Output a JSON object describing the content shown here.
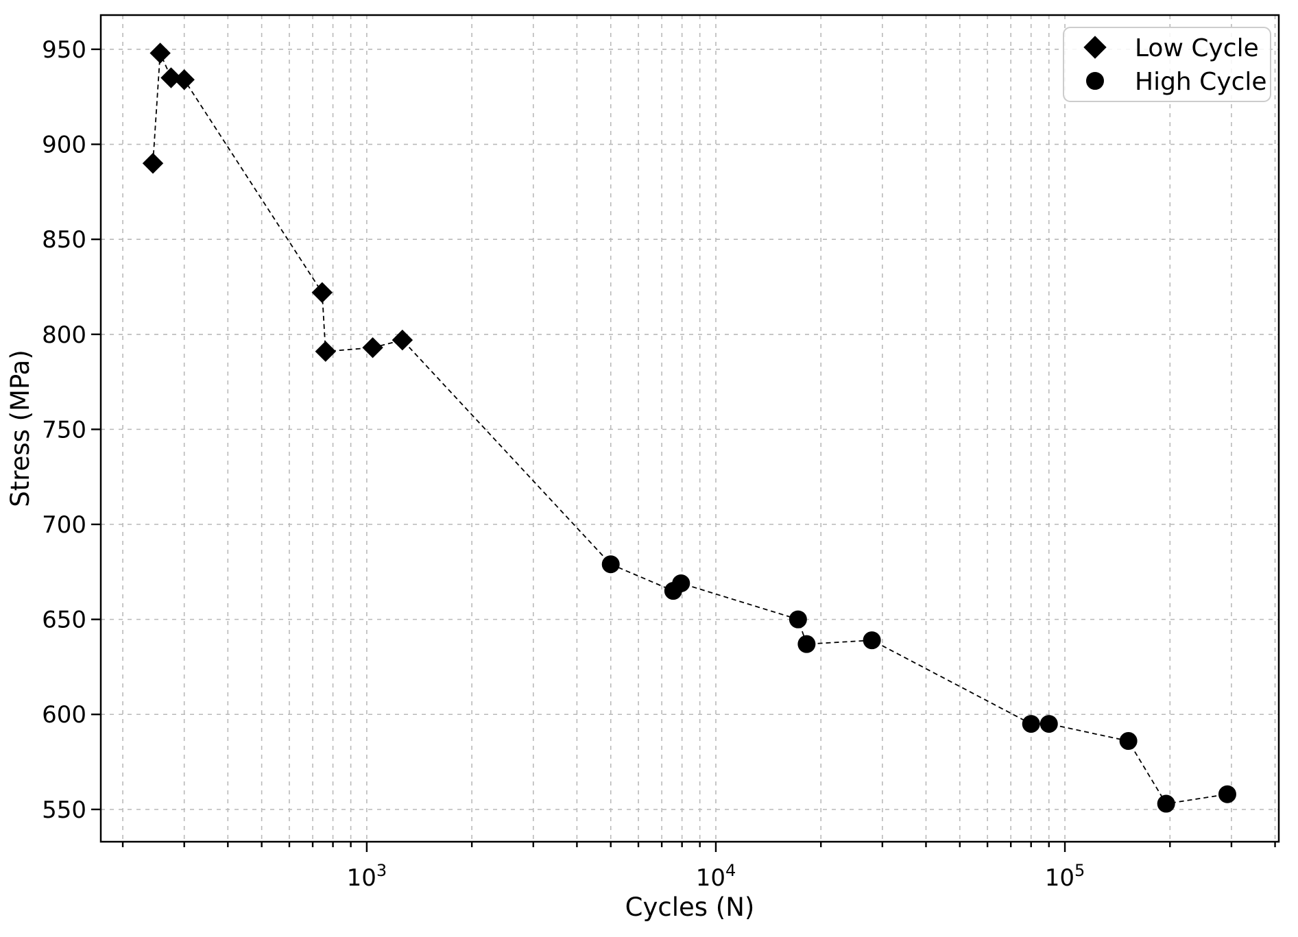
{
  "chart_data": {
    "type": "scatter",
    "title": "",
    "xlabel": "Cycles (N)",
    "ylabel": "Stress (MPa)",
    "x_scale": "log",
    "xlim": [
      173,
      410000
    ],
    "ylim": [
      533,
      968
    ],
    "y_ticks": [
      550,
      600,
      650,
      700,
      750,
      800,
      850,
      900,
      950
    ],
    "x_major_ticks": [
      {
        "value": 1000,
        "base": "10",
        "exp": "3"
      },
      {
        "value": 10000,
        "base": "10",
        "exp": "4"
      },
      {
        "value": 100000,
        "base": "10",
        "exp": "5"
      }
    ],
    "grid": {
      "show": true,
      "minor_x": true,
      "color": "#b9b9b9",
      "style": "dashed"
    },
    "line": {
      "style": "dashed",
      "color": "#000000",
      "connects": "all points sorted by cycles"
    },
    "legend": {
      "position": "upper right",
      "entries": [
        {
          "label": "Low Cycle",
          "marker": "diamond",
          "color": "#000000"
        },
        {
          "label": "High Cycle",
          "marker": "circle",
          "color": "#000000"
        }
      ]
    },
    "series": [
      {
        "name": "Low Cycle",
        "marker": "diamond",
        "color": "#000000",
        "points": [
          {
            "cycles": 244,
            "stress": 890
          },
          {
            "cycles": 256,
            "stress": 948
          },
          {
            "cycles": 275,
            "stress": 935
          },
          {
            "cycles": 300,
            "stress": 934
          },
          {
            "cycles": 745,
            "stress": 822
          },
          {
            "cycles": 762,
            "stress": 791
          },
          {
            "cycles": 1040,
            "stress": 793
          },
          {
            "cycles": 1265,
            "stress": 797
          }
        ]
      },
      {
        "name": "High Cycle",
        "marker": "circle",
        "color": "#000000",
        "points": [
          {
            "cycles": 5000,
            "stress": 679
          },
          {
            "cycles": 7550,
            "stress": 665
          },
          {
            "cycles": 7950,
            "stress": 669
          },
          {
            "cycles": 17200,
            "stress": 650
          },
          {
            "cycles": 18200,
            "stress": 637
          },
          {
            "cycles": 28000,
            "stress": 639
          },
          {
            "cycles": 80000,
            "stress": 595
          },
          {
            "cycles": 90000,
            "stress": 595
          },
          {
            "cycles": 152000,
            "stress": 586
          },
          {
            "cycles": 195000,
            "stress": 553
          },
          {
            "cycles": 292000,
            "stress": 558
          }
        ]
      }
    ]
  }
}
